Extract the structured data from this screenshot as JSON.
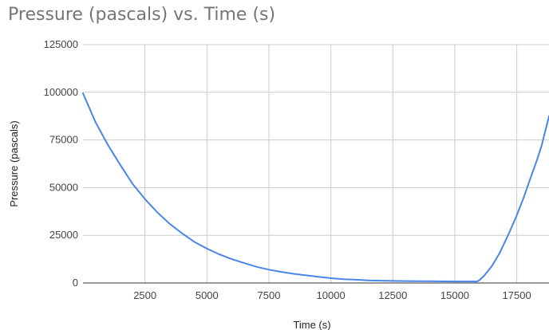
{
  "chart_data": {
    "type": "line",
    "title": "Pressure (pascals) vs. Time (s)",
    "xlabel": "Time (s)",
    "ylabel": "Pressure (pascals)",
    "xlim": [
      0,
      18800
    ],
    "ylim": [
      0,
      125000
    ],
    "x_ticks": [
      2500,
      5000,
      7500,
      10000,
      12500,
      15000,
      17500
    ],
    "y_ticks": [
      0,
      25000,
      50000,
      75000,
      100000,
      125000
    ],
    "x_tick_labels": [
      "2500",
      "5000",
      "7500",
      "10000",
      "12500",
      "15000",
      "17500"
    ],
    "y_tick_labels": [
      "0",
      "25000",
      "50000",
      "75000",
      "100000",
      "125000"
    ],
    "grid": true,
    "legend": "none",
    "series": [
      {
        "color": "#4a86e8",
        "x": [
          0,
          500,
          1000,
          1500,
          2000,
          2500,
          3000,
          3500,
          4000,
          4500,
          5000,
          5500,
          6000,
          6500,
          7000,
          7500,
          8000,
          8500,
          9000,
          9500,
          10000,
          10500,
          11000,
          11500,
          12000,
          12500,
          13000,
          13500,
          14000,
          14500,
          15000,
          15500,
          15900,
          16000,
          16200,
          16500,
          16800,
          17000,
          17200,
          17500,
          17800,
          18000,
          18300,
          18500,
          18800
        ],
        "y": [
          99500,
          84500,
          72500,
          62000,
          52000,
          44000,
          37000,
          31000,
          26000,
          21500,
          18000,
          15000,
          12500,
          10500,
          8500,
          7000,
          5800,
          4800,
          4000,
          3200,
          2500,
          2000,
          1700,
          1400,
          1200,
          1100,
          1000,
          950,
          900,
          850,
          800,
          800,
          800,
          1500,
          4000,
          9000,
          15500,
          21000,
          26500,
          35500,
          45500,
          53000,
          64000,
          72000,
          87500
        ]
      }
    ]
  }
}
